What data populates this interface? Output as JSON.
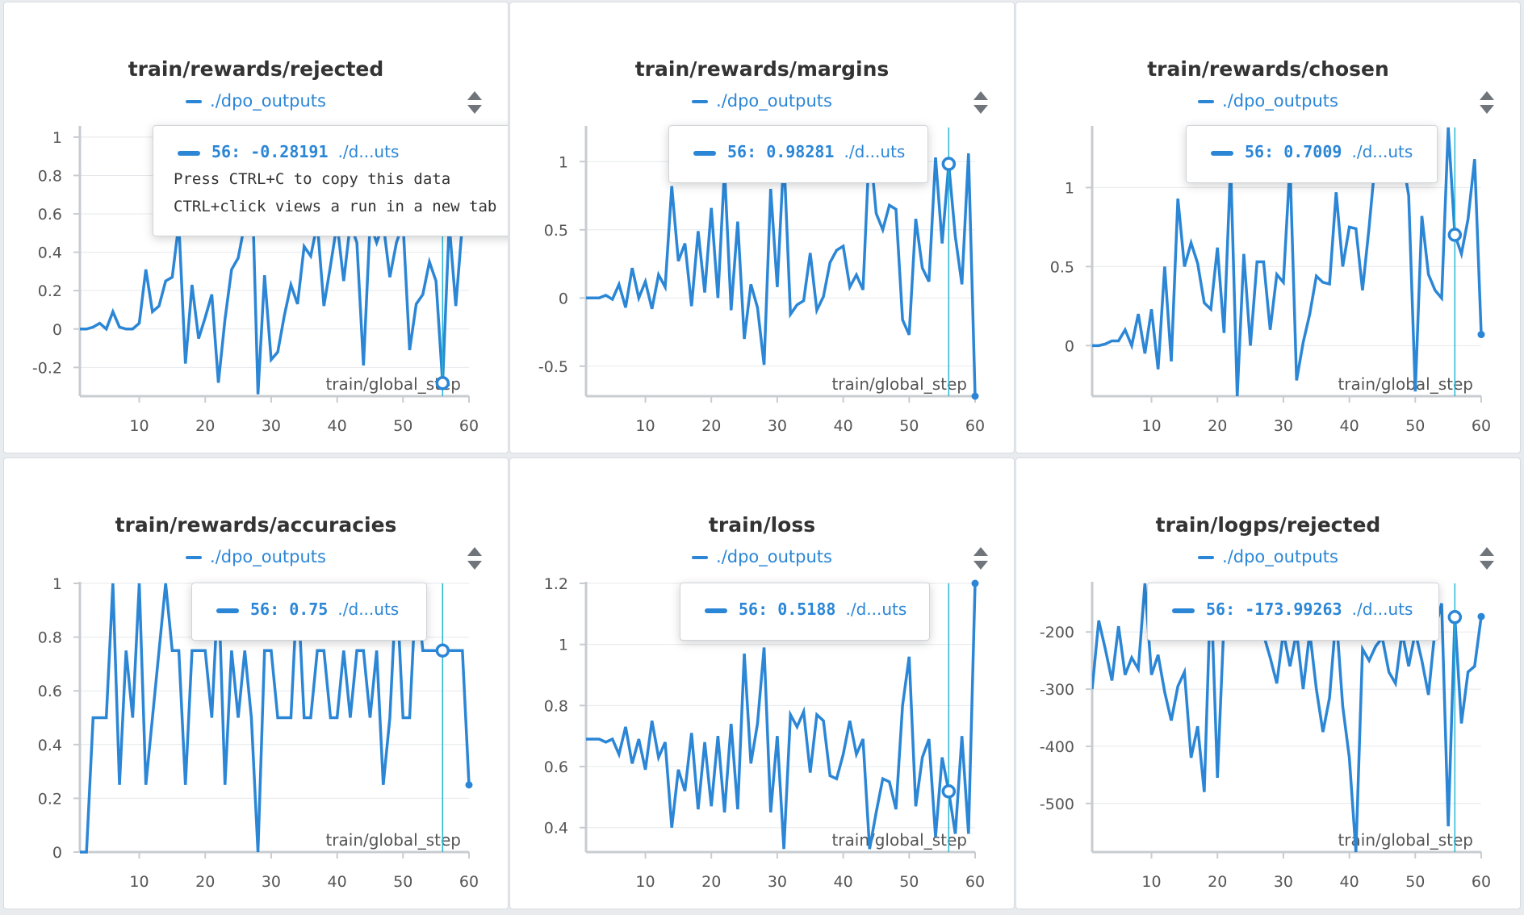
{
  "run_name": "./dpo_outputs",
  "accent_color": "#2b86d6",
  "crosshair_color": "#27b8d3",
  "x_axis_label": "train/global_step",
  "hover_step": 56,
  "panels": [
    {
      "title": "train/rewards/rejected",
      "tooltip": {
        "step": "56",
        "value": "-0.28191",
        "run": "./d...uts",
        "hints": [
          "Press CTRL+C to copy this data",
          "CTRL+click views a run in a new tab"
        ]
      }
    },
    {
      "title": "train/rewards/margins",
      "tooltip": {
        "step": "56",
        "value": "0.98281",
        "run": "./d...uts"
      }
    },
    {
      "title": "train/rewards/chosen",
      "tooltip": {
        "step": "56",
        "value": "0.7009",
        "run": "./d...uts"
      }
    },
    {
      "title": "train/rewards/accuracies",
      "tooltip": {
        "step": "56",
        "value": "0.75",
        "run": "./d...uts"
      }
    },
    {
      "title": "train/loss",
      "tooltip": {
        "step": "56",
        "value": "0.5188",
        "run": "./d...uts"
      }
    },
    {
      "title": "train/logps/rejected",
      "tooltip": {
        "step": "56",
        "value": "-173.99263",
        "run": "./d...uts"
      }
    }
  ],
  "chart_data": [
    {
      "type": "line",
      "title": "train/rewards/rejected",
      "xlabel": "train/global_step",
      "ylabel": "",
      "xlim": [
        1,
        60
      ],
      "ylim": [
        -0.35,
        1.05
      ],
      "xticks": [
        10,
        20,
        30,
        40,
        50,
        60
      ],
      "yticks": [
        -0.2,
        0,
        0.2,
        0.4,
        0.6,
        0.8,
        1
      ],
      "ytick_labels": [
        "-0.2",
        "0",
        "0.2",
        "0.4",
        "0.6",
        "0.8",
        "1"
      ],
      "grid": true,
      "legend": "top-center",
      "series": [
        {
          "name": "./dpo_outputs",
          "x": [
            1,
            2,
            3,
            4,
            5,
            6,
            7,
            8,
            9,
            10,
            11,
            12,
            13,
            14,
            15,
            16,
            17,
            18,
            19,
            20,
            21,
            22,
            23,
            24,
            25,
            26,
            27,
            28,
            29,
            30,
            31,
            32,
            33,
            34,
            35,
            36,
            37,
            38,
            39,
            40,
            41,
            42,
            43,
            44,
            45,
            46,
            47,
            48,
            49,
            50,
            51,
            52,
            53,
            54,
            55,
            56,
            57,
            58,
            59,
            60
          ],
          "values": [
            0,
            0,
            0.01,
            0.03,
            0,
            0.09,
            0.01,
            0,
            0,
            0.03,
            0.31,
            0.09,
            0.12,
            0.25,
            0.27,
            0.55,
            -0.18,
            0.23,
            -0.05,
            0.06,
            0.18,
            -0.28,
            0.05,
            0.31,
            0.37,
            0.55,
            0.9,
            -0.34,
            0.28,
            -0.16,
            -0.12,
            0.07,
            0.23,
            0.13,
            0.43,
            0.38,
            0.55,
            0.12,
            0.33,
            0.55,
            0.25,
            0.55,
            0.45,
            -0.19,
            0.55,
            0.45,
            0.55,
            0.27,
            0.45,
            0.55,
            -0.11,
            0.13,
            0.18,
            0.35,
            0.25,
            -0.28191,
            0.55,
            0.12,
            0.55,
            0.6
          ]
        }
      ]
    },
    {
      "type": "line",
      "title": "train/rewards/margins",
      "xlabel": "train/global_step",
      "ylabel": "",
      "xlim": [
        1,
        60
      ],
      "ylim": [
        -0.72,
        1.25
      ],
      "xticks": [
        10,
        20,
        30,
        40,
        50,
        60
      ],
      "yticks": [
        -0.5,
        0,
        0.5,
        1
      ],
      "ytick_labels": [
        "-0.5",
        "0",
        "0.5",
        "1"
      ],
      "grid": true,
      "legend": "top-center",
      "series": [
        {
          "name": "./dpo_outputs",
          "x": [
            1,
            2,
            3,
            4,
            5,
            6,
            7,
            8,
            9,
            10,
            11,
            12,
            13,
            14,
            15,
            16,
            17,
            18,
            19,
            20,
            21,
            22,
            23,
            24,
            25,
            26,
            27,
            28,
            29,
            30,
            31,
            32,
            33,
            34,
            35,
            36,
            37,
            38,
            39,
            40,
            41,
            42,
            43,
            44,
            45,
            46,
            47,
            48,
            49,
            50,
            51,
            52,
            53,
            54,
            55,
            56,
            57,
            58,
            59,
            60
          ],
          "values": [
            0,
            0,
            0,
            0.02,
            -0.01,
            0.1,
            -0.07,
            0.22,
            0,
            0.12,
            -0.08,
            0.17,
            0.08,
            0.82,
            0.27,
            0.4,
            -0.06,
            0.49,
            0.04,
            0.66,
            0,
            0.95,
            -0.09,
            0.56,
            -0.3,
            0.1,
            -0.07,
            -0.49,
            0.8,
            0.08,
            1.05,
            -0.12,
            -0.05,
            -0.02,
            0.33,
            -0.09,
            0.01,
            0.26,
            0.35,
            0.38,
            0.08,
            0.17,
            0.06,
            1.15,
            0.62,
            0.5,
            0.68,
            0.65,
            -0.16,
            -0.27,
            0.58,
            0.22,
            0.12,
            1.03,
            0.4,
            0.98281,
            0.45,
            0.1,
            1.06,
            -0.72
          ]
        }
      ]
    },
    {
      "type": "line",
      "title": "train/rewards/chosen",
      "xlabel": "train/global_step",
      "ylabel": "",
      "xlim": [
        1,
        60
      ],
      "ylim": [
        -0.32,
        1.38
      ],
      "xticks": [
        10,
        20,
        30,
        40,
        50,
        60
      ],
      "yticks": [
        0,
        0.5,
        1
      ],
      "ytick_labels": [
        "0",
        "0.5",
        "1"
      ],
      "grid": true,
      "legend": "top-center",
      "series": [
        {
          "name": "./dpo_outputs",
          "x": [
            1,
            2,
            3,
            4,
            5,
            6,
            7,
            8,
            9,
            10,
            11,
            12,
            13,
            14,
            15,
            16,
            17,
            18,
            19,
            20,
            21,
            22,
            23,
            24,
            25,
            26,
            27,
            28,
            29,
            30,
            31,
            32,
            33,
            34,
            35,
            36,
            37,
            38,
            39,
            40,
            41,
            42,
            43,
            44,
            45,
            46,
            47,
            48,
            49,
            50,
            51,
            52,
            53,
            54,
            55,
            56,
            57,
            58,
            59,
            60
          ],
          "values": [
            0,
            0,
            0.01,
            0.03,
            0.03,
            0.1,
            0,
            0.2,
            -0.05,
            0.23,
            -0.15,
            0.5,
            -0.1,
            0.93,
            0.5,
            0.65,
            0.52,
            0.27,
            0.23,
            0.62,
            0.08,
            1.15,
            -0.32,
            0.58,
            0,
            0.53,
            0.53,
            0.1,
            0.45,
            0.4,
            1.15,
            -0.22,
            0.02,
            0.2,
            0.44,
            0.4,
            0.39,
            0.97,
            0.5,
            0.75,
            0.74,
            0.35,
            0.75,
            1.2,
            1.2,
            1.2,
            1.2,
            1.2,
            0.95,
            -0.29,
            0.82,
            0.45,
            0.35,
            0.3,
            1.38,
            0.7009,
            0.58,
            0.8,
            1.18,
            0.07
          ]
        }
      ]
    },
    {
      "type": "line",
      "title": "train/rewards/accuracies",
      "xlabel": "train/global_step",
      "ylabel": "",
      "xlim": [
        1,
        60
      ],
      "ylim": [
        0,
        1
      ],
      "xticks": [
        10,
        20,
        30,
        40,
        50,
        60
      ],
      "yticks": [
        0,
        0.2,
        0.4,
        0.6,
        0.8,
        1
      ],
      "ytick_labels": [
        "0",
        "0.2",
        "0.4",
        "0.6",
        "0.8",
        "1"
      ],
      "grid": true,
      "legend": "top-center",
      "series": [
        {
          "name": "./dpo_outputs",
          "x": [
            1,
            2,
            3,
            4,
            5,
            6,
            7,
            8,
            9,
            10,
            11,
            12,
            13,
            14,
            15,
            16,
            17,
            18,
            19,
            20,
            21,
            22,
            23,
            24,
            25,
            26,
            27,
            28,
            29,
            30,
            31,
            32,
            33,
            34,
            35,
            36,
            37,
            38,
            39,
            40,
            41,
            42,
            43,
            44,
            45,
            46,
            47,
            48,
            49,
            50,
            51,
            52,
            53,
            54,
            55,
            56,
            57,
            58,
            59,
            60
          ],
          "values": [
            0,
            0,
            0.5,
            0.5,
            0.5,
            1,
            0.25,
            0.75,
            0.5,
            1,
            0.25,
            0.5,
            0.75,
            1,
            0.75,
            0.75,
            0.25,
            0.75,
            0.75,
            0.75,
            0.5,
            1,
            0.25,
            0.75,
            0.5,
            0.75,
            0.5,
            0,
            0.75,
            0.75,
            0.5,
            0.5,
            0.5,
            1,
            0.5,
            0.5,
            0.75,
            0.75,
            0.5,
            0.5,
            0.75,
            0.5,
            0.75,
            0.75,
            0.5,
            0.75,
            0.25,
            0.5,
            1,
            0.5,
            0.5,
            1,
            0.75,
            0.75,
            0.75,
            0.75,
            0.75,
            0.75,
            0.75,
            0.25
          ]
        }
      ]
    },
    {
      "type": "line",
      "title": "train/loss",
      "xlabel": "train/global_step",
      "ylabel": "",
      "xlim": [
        1,
        60
      ],
      "ylim": [
        0.32,
        1.2
      ],
      "xticks": [
        10,
        20,
        30,
        40,
        50,
        60
      ],
      "yticks": [
        0.4,
        0.6,
        0.8,
        1,
        1.2
      ],
      "ytick_labels": [
        "0.4",
        "0.6",
        "0.8",
        "1",
        "1.2"
      ],
      "grid": true,
      "legend": "top-center",
      "series": [
        {
          "name": "./dpo_outputs",
          "x": [
            1,
            2,
            3,
            4,
            5,
            6,
            7,
            8,
            9,
            10,
            11,
            12,
            13,
            14,
            15,
            16,
            17,
            18,
            19,
            20,
            21,
            22,
            23,
            24,
            25,
            26,
            27,
            28,
            29,
            30,
            31,
            32,
            33,
            34,
            35,
            36,
            37,
            38,
            39,
            40,
            41,
            42,
            43,
            44,
            45,
            46,
            47,
            48,
            49,
            50,
            51,
            52,
            53,
            54,
            55,
            56,
            57,
            58,
            59,
            60
          ],
          "values": [
            0.69,
            0.69,
            0.69,
            0.68,
            0.69,
            0.64,
            0.73,
            0.61,
            0.69,
            0.59,
            0.75,
            0.63,
            0.68,
            0.4,
            0.59,
            0.52,
            0.71,
            0.46,
            0.68,
            0.47,
            0.7,
            0.45,
            0.74,
            0.46,
            0.97,
            0.61,
            0.74,
            0.99,
            0.45,
            0.7,
            0.33,
            0.77,
            0.73,
            0.78,
            0.58,
            0.77,
            0.75,
            0.57,
            0.56,
            0.64,
            0.75,
            0.64,
            0.69,
            0.33,
            0.45,
            0.56,
            0.55,
            0.46,
            0.8,
            0.96,
            0.47,
            0.63,
            0.69,
            0.37,
            0.63,
            0.5188,
            0.38,
            0.7,
            0.38,
            1.2
          ]
        }
      ]
    },
    {
      "type": "line",
      "title": "train/logps/rejected",
      "xlabel": "train/global_step",
      "ylabel": "",
      "xlim": [
        1,
        60
      ],
      "ylim": [
        -585,
        -115
      ],
      "xticks": [
        10,
        20,
        30,
        40,
        50,
        60
      ],
      "yticks": [
        -500,
        -400,
        -300,
        -200
      ],
      "ytick_labels": [
        "-500",
        "-400",
        "-300",
        "-200"
      ],
      "grid": true,
      "legend": "top-center",
      "series": [
        {
          "name": "./dpo_outputs",
          "x": [
            1,
            2,
            3,
            4,
            5,
            6,
            7,
            8,
            9,
            10,
            11,
            12,
            13,
            14,
            15,
            16,
            17,
            18,
            19,
            20,
            21,
            22,
            23,
            24,
            25,
            26,
            27,
            28,
            29,
            30,
            31,
            32,
            33,
            34,
            35,
            36,
            37,
            38,
            39,
            40,
            41,
            42,
            43,
            44,
            45,
            46,
            47,
            48,
            49,
            50,
            51,
            52,
            53,
            54,
            55,
            56,
            57,
            58,
            59,
            60
          ],
          "values": [
            -300,
            -180,
            -230,
            -285,
            -190,
            -275,
            -245,
            -265,
            -115,
            -275,
            -240,
            -305,
            -355,
            -295,
            -270,
            -420,
            -365,
            -480,
            -115,
            -455,
            -180,
            -200,
            -190,
            -200,
            -185,
            -205,
            -205,
            -245,
            -290,
            -200,
            -260,
            -200,
            -300,
            -200,
            -300,
            -375,
            -315,
            -170,
            -330,
            -420,
            -585,
            -230,
            -250,
            -225,
            -210,
            -270,
            -290,
            -200,
            -260,
            -200,
            -250,
            -310,
            -195,
            -150,
            -540,
            -173.99,
            -360,
            -270,
            -260,
            -173
          ]
        }
      ]
    }
  ]
}
